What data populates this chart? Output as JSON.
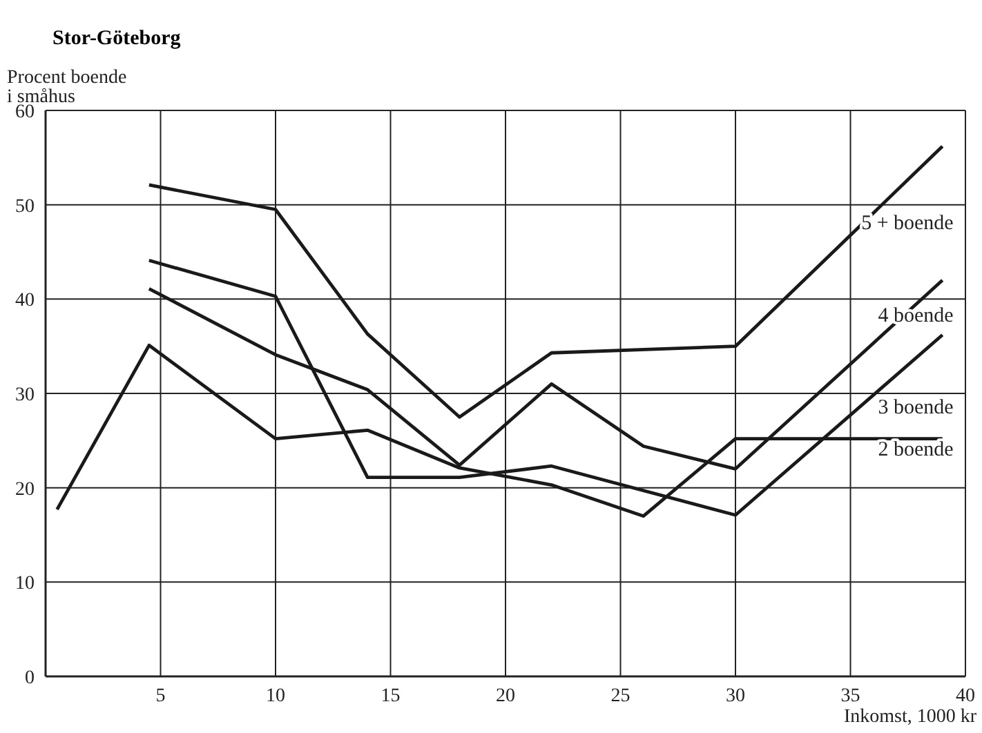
{
  "chart_data": {
    "type": "line",
    "title": "Stor-Göteborg",
    "ylabel": "Procent boende\ni småhus",
    "xlabel": "Inkomst, 1000 kr",
    "xlim": [
      0,
      40
    ],
    "xticks": [
      5,
      10,
      15,
      20,
      25,
      30,
      35,
      40
    ],
    "ylim": [
      0,
      60
    ],
    "yticks": [
      0,
      10,
      20,
      30,
      40,
      50,
      60
    ],
    "grid": true,
    "marker": "none",
    "line_style": "solid",
    "series": [
      {
        "name": "5 + boende",
        "color": "#1a1a1a",
        "x": [
          4.5,
          10,
          14,
          18,
          22,
          30,
          39
        ],
        "values": [
          52.1,
          49.5,
          36.3,
          27.5,
          34.3,
          35,
          56.2
        ]
      },
      {
        "name": "4 boende",
        "color": "#1a1a1a",
        "x": [
          4.5,
          10,
          14,
          18,
          22,
          26,
          30,
          39
        ],
        "values": [
          41.1,
          34.1,
          30.4,
          22.4,
          31,
          24.4,
          22,
          42
        ]
      },
      {
        "name": "3 boende",
        "color": "#1a1a1a",
        "x": [
          4.5,
          10,
          14,
          18,
          22,
          30,
          39
        ],
        "values": [
          44.1,
          40.3,
          21.1,
          21.1,
          22.3,
          17.1,
          36.2
        ]
      },
      {
        "name": "2 boende",
        "color": "#1a1a1a",
        "x": [
          0.5,
          4.5,
          10,
          14,
          18,
          22,
          26,
          30,
          39
        ],
        "values": [
          17.7,
          35.1,
          25.2,
          26.1,
          22.1,
          20.3,
          17,
          25.2,
          25.2
        ]
      }
    ]
  }
}
